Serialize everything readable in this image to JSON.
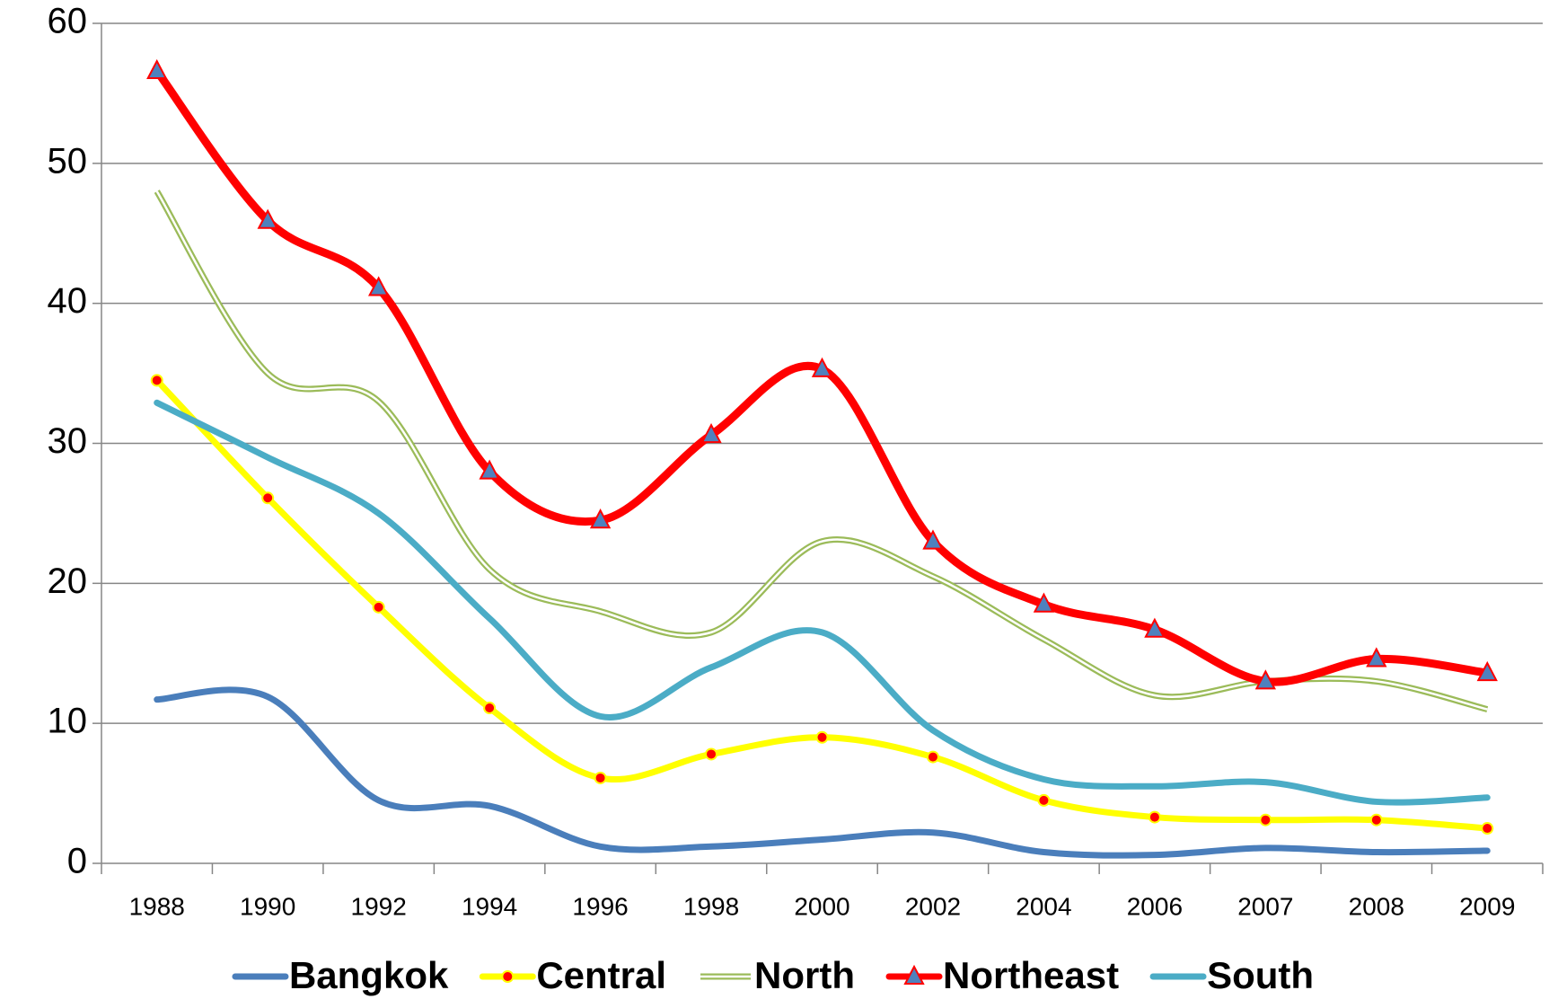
{
  "chart_data": {
    "type": "line",
    "categories": [
      "1988",
      "1990",
      "1992",
      "1994",
      "1996",
      "1998",
      "2000",
      "2002",
      "2004",
      "2006",
      "2007",
      "2008",
      "2009"
    ],
    "ylim": [
      0,
      60
    ],
    "yticks": [
      0,
      10,
      20,
      30,
      40,
      50,
      60
    ],
    "grid": true,
    "legend": "bottom",
    "series": [
      {
        "name": "Bangkok",
        "color": "#4a7ebb",
        "marker": "none",
        "values": [
          11.7,
          11.9,
          4.5,
          4.1,
          1.2,
          1.2,
          1.7,
          2.2,
          0.8,
          0.6,
          1.1,
          0.8,
          0.9
        ]
      },
      {
        "name": "Central",
        "color": "#ffff00",
        "marker": "circle",
        "values": [
          34.5,
          26.1,
          18.3,
          11.1,
          6.1,
          7.8,
          9.0,
          7.6,
          4.5,
          3.3,
          3.1,
          3.1,
          2.5
        ]
      },
      {
        "name": "North",
        "color": "#9bbb59",
        "marker": "none",
        "values": [
          48,
          35,
          33,
          21,
          18,
          16.5,
          23,
          20.5,
          16,
          12,
          13,
          13,
          11
        ]
      },
      {
        "name": "Northeast",
        "color": "#ff0000",
        "marker": "triangle",
        "values": [
          56.6,
          45.9,
          41.1,
          28,
          24.5,
          30.6,
          35.3,
          23,
          18.5,
          16.7,
          13,
          14.6,
          13.6
        ]
      },
      {
        "name": "South",
        "color": "#4bacc6",
        "marker": "none",
        "values": [
          32.9,
          29,
          25,
          17.5,
          10.5,
          14,
          16.5,
          9.5,
          6,
          5.5,
          5.8,
          4.4,
          4.7
        ]
      }
    ]
  }
}
